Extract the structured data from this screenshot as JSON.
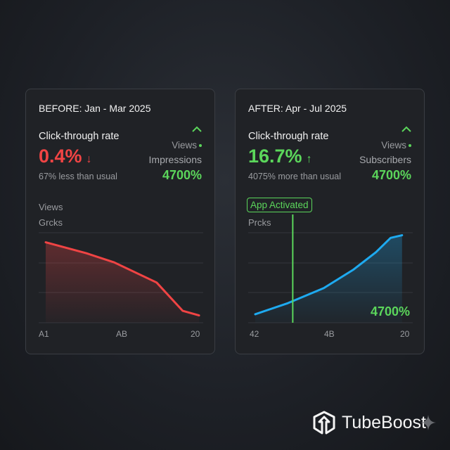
{
  "before": {
    "title": "BEFORE: Jan - Mar 2025",
    "metric_label": "Click-through rate",
    "value": "0.4%",
    "trend": "↓",
    "note": "67% less than usual",
    "legend_views": "Views",
    "legend_metric": "Impressions",
    "legend_pct": "4700%",
    "chart_label": "Views",
    "chart_sublabel": "Grcks",
    "ticks": [
      "A1",
      "AB",
      "20"
    ],
    "color": "#f04444"
  },
  "after": {
    "title": "AFTER: Apr - Jul 2025",
    "metric_label": "Click-through rate",
    "value": "16.7%",
    "trend": "↑",
    "note": "4075% more than usual",
    "legend_views": "Views",
    "legend_metric": "Subscribers",
    "legend_pct": "4700%",
    "annotation": "App Activated",
    "chart_sublabel": "Prcks",
    "chart_pct": "4700%",
    "ticks": [
      "42",
      "4B",
      "20"
    ],
    "color": "#1eaaf0"
  },
  "brand": {
    "name": "TubeBoost"
  },
  "chart_data": [
    {
      "type": "line",
      "title": "Views",
      "series": [
        {
          "name": "before",
          "x": [
            0,
            0.25,
            0.42,
            0.68,
            0.84,
            0.94
          ],
          "values": [
            88,
            76,
            66,
            44,
            13,
            8
          ]
        }
      ],
      "ylim": [
        0,
        100
      ]
    },
    {
      "type": "line",
      "title": "Prcks",
      "series": [
        {
          "name": "after",
          "x": [
            0,
            0.2,
            0.42,
            0.6,
            0.74,
            0.83,
            0.9
          ],
          "values": [
            13,
            30,
            53,
            81,
            108,
            130,
            134
          ]
        }
      ],
      "ylim": [
        0,
        140
      ],
      "annotation_x": 0.23
    }
  ]
}
